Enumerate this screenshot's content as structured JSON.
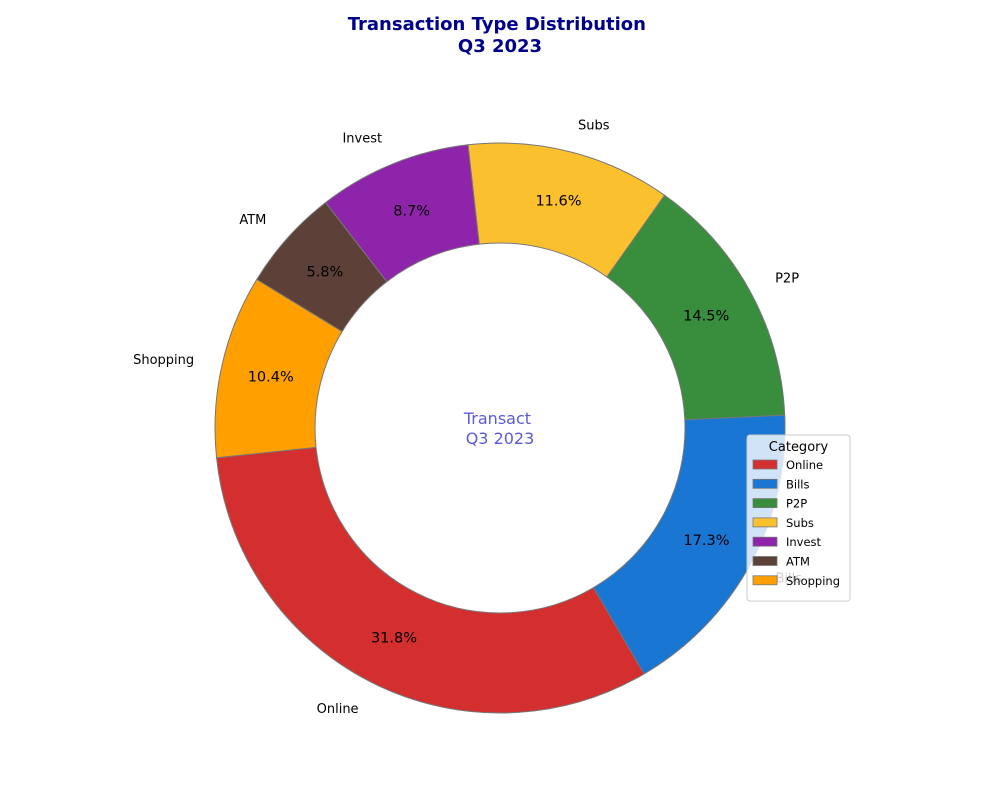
{
  "chart_data": {
    "type": "pie",
    "style": "donut",
    "title_lines": [
      "Transaction Type Distribution",
      "Q3 2023"
    ],
    "center_lines": [
      "Transact",
      "Q3 2023"
    ],
    "categories": [
      "Online",
      "Bills",
      "P2P",
      "Subs",
      "Invest",
      "ATM",
      "Shopping"
    ],
    "values": [
      31.8,
      17.3,
      14.5,
      11.6,
      8.7,
      5.8,
      10.4
    ],
    "value_labels": [
      "31.8%",
      "17.3%",
      "14.5%",
      "11.6%",
      "8.7%",
      "5.8%",
      "10.4%"
    ],
    "colors": [
      "#d32f2f",
      "#1976d2",
      "#388e3c",
      "#fbc02d",
      "#8e24aa",
      "#5d4037",
      "#ffa000"
    ],
    "edge_color": "#777777",
    "legend": {
      "title": "Category",
      "placement": "right",
      "entries": [
        "Online",
        "Bills",
        "P2P",
        "Subs",
        "Invest",
        "ATM",
        "Shopping"
      ]
    }
  }
}
